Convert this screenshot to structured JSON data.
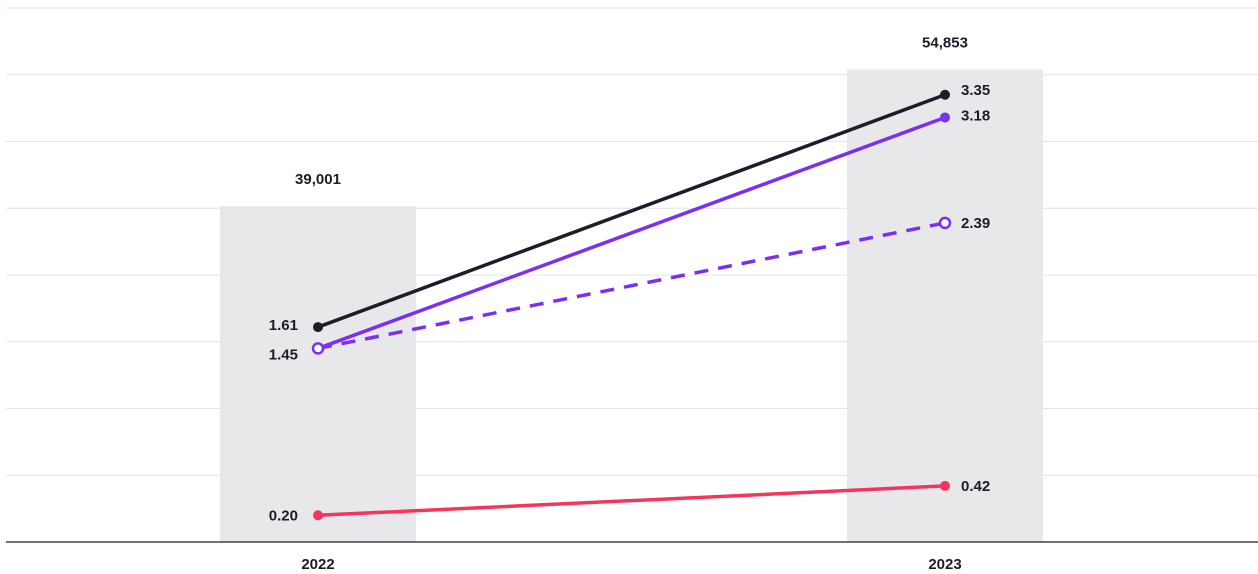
{
  "chart_data": {
    "type": "bar+line",
    "categories": [
      "2022",
      "2023"
    ],
    "bars": {
      "values": [
        39001,
        54853
      ],
      "labels": [
        "39,001",
        "54,853"
      ],
      "color": "#e8e8eb"
    },
    "series": [
      {
        "values": [
          1.61,
          3.35
        ],
        "labels": [
          "1.61",
          "3.35"
        ],
        "color": "#1c1c2b",
        "style": "solid",
        "marker": "filled"
      },
      {
        "values": [
          1.45,
          3.18
        ],
        "labels": [
          "1.45",
          "3.18"
        ],
        "color": "#7b2ff2",
        "style": "solid",
        "marker": "filled"
      },
      {
        "values": [
          1.45,
          2.39
        ],
        "labels": [
          "",
          "2.39"
        ],
        "color": "#7b2ff2",
        "style": "dashed",
        "marker": "hollow"
      },
      {
        "values": [
          0.2,
          0.42
        ],
        "labels": [
          "0.20",
          "0.42"
        ],
        "color": "#f5365c",
        "style": "solid",
        "marker": "filled"
      }
    ],
    "bar_axis_range": [
      0,
      62000
    ],
    "line_axis_range": [
      0,
      4
    ],
    "grid": true,
    "gridline_color": "#e4e4e8",
    "axis_color": "#1c1c2b"
  }
}
